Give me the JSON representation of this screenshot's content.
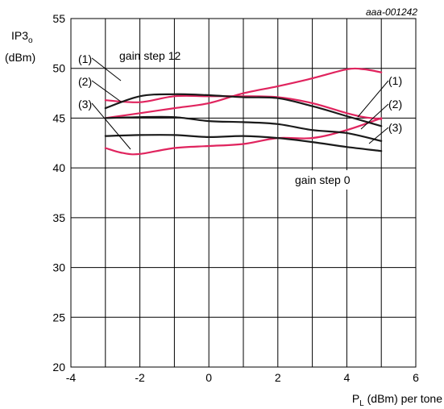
{
  "chart_data": {
    "type": "line",
    "reference": "aaa-001242",
    "ylabel_main": "IP3",
    "ylabel_sub": "o",
    "ylabel_unit": "(dBm)",
    "xlabel_main": "P",
    "xlabel_sub": "L",
    "xlabel_rest": " (dBm) per tone",
    "xlim": [
      -4,
      6
    ],
    "ylim": [
      20,
      55
    ],
    "xticks": [
      -4,
      -2,
      0,
      2,
      4,
      6
    ],
    "yticks": [
      20,
      25,
      30,
      35,
      40,
      45,
      50,
      55
    ],
    "grid": true,
    "colors": {
      "gain_step_12": "#e0245e",
      "gain_step_0": "#1a1a1a"
    },
    "groups": [
      {
        "label": "gain step 12",
        "color": "#e0245e",
        "series": [
          {
            "marker": "(1)",
            "x": [
              -3,
              -2,
              -1,
              0,
              1,
              2,
              3,
              4,
              4.5,
              5
            ],
            "y": [
              46.8,
              46.6,
              47.2,
              47.2,
              47.2,
              47.1,
              46.5,
              45.5,
              45.1,
              44.9
            ]
          },
          {
            "marker": "(2)",
            "x": [
              -3,
              -2,
              -1,
              0,
              1,
              2,
              3,
              4,
              4.5,
              5
            ],
            "y": [
              45.0,
              45.5,
              46.0,
              46.5,
              47.5,
              48.2,
              49.0,
              49.9,
              49.9,
              49.6
            ]
          },
          {
            "marker": "(3)",
            "x": [
              -3,
              -2.5,
              -2,
              -1,
              0,
              1,
              2,
              3,
              4,
              5
            ],
            "y": [
              42.0,
              41.5,
              41.4,
              42.0,
              42.2,
              42.4,
              43.0,
              43.0,
              43.8,
              45.0
            ]
          }
        ]
      },
      {
        "label": "gain step 0",
        "color": "#1a1a1a",
        "series": [
          {
            "marker": "(1)",
            "x": [
              -3,
              -2,
              -1,
              0,
              1,
              2,
              3,
              4,
              5
            ],
            "y": [
              46.0,
              47.2,
              47.4,
              47.3,
              47.1,
              47.0,
              46.2,
              45.2,
              44.2
            ]
          },
          {
            "marker": "(2)",
            "x": [
              -3,
              -2,
              -1,
              0,
              1,
              2,
              3,
              4,
              5
            ],
            "y": [
              45.0,
              45.1,
              45.1,
              44.7,
              44.6,
              44.4,
              43.8,
              43.5,
              42.7
            ]
          },
          {
            "marker": "(3)",
            "x": [
              -3,
              -2,
              -1,
              0,
              1,
              2,
              3,
              4,
              5
            ],
            "y": [
              43.2,
              43.3,
              43.3,
              43.1,
              43.2,
              43.0,
              42.6,
              42.1,
              41.7
            ]
          }
        ]
      }
    ]
  }
}
